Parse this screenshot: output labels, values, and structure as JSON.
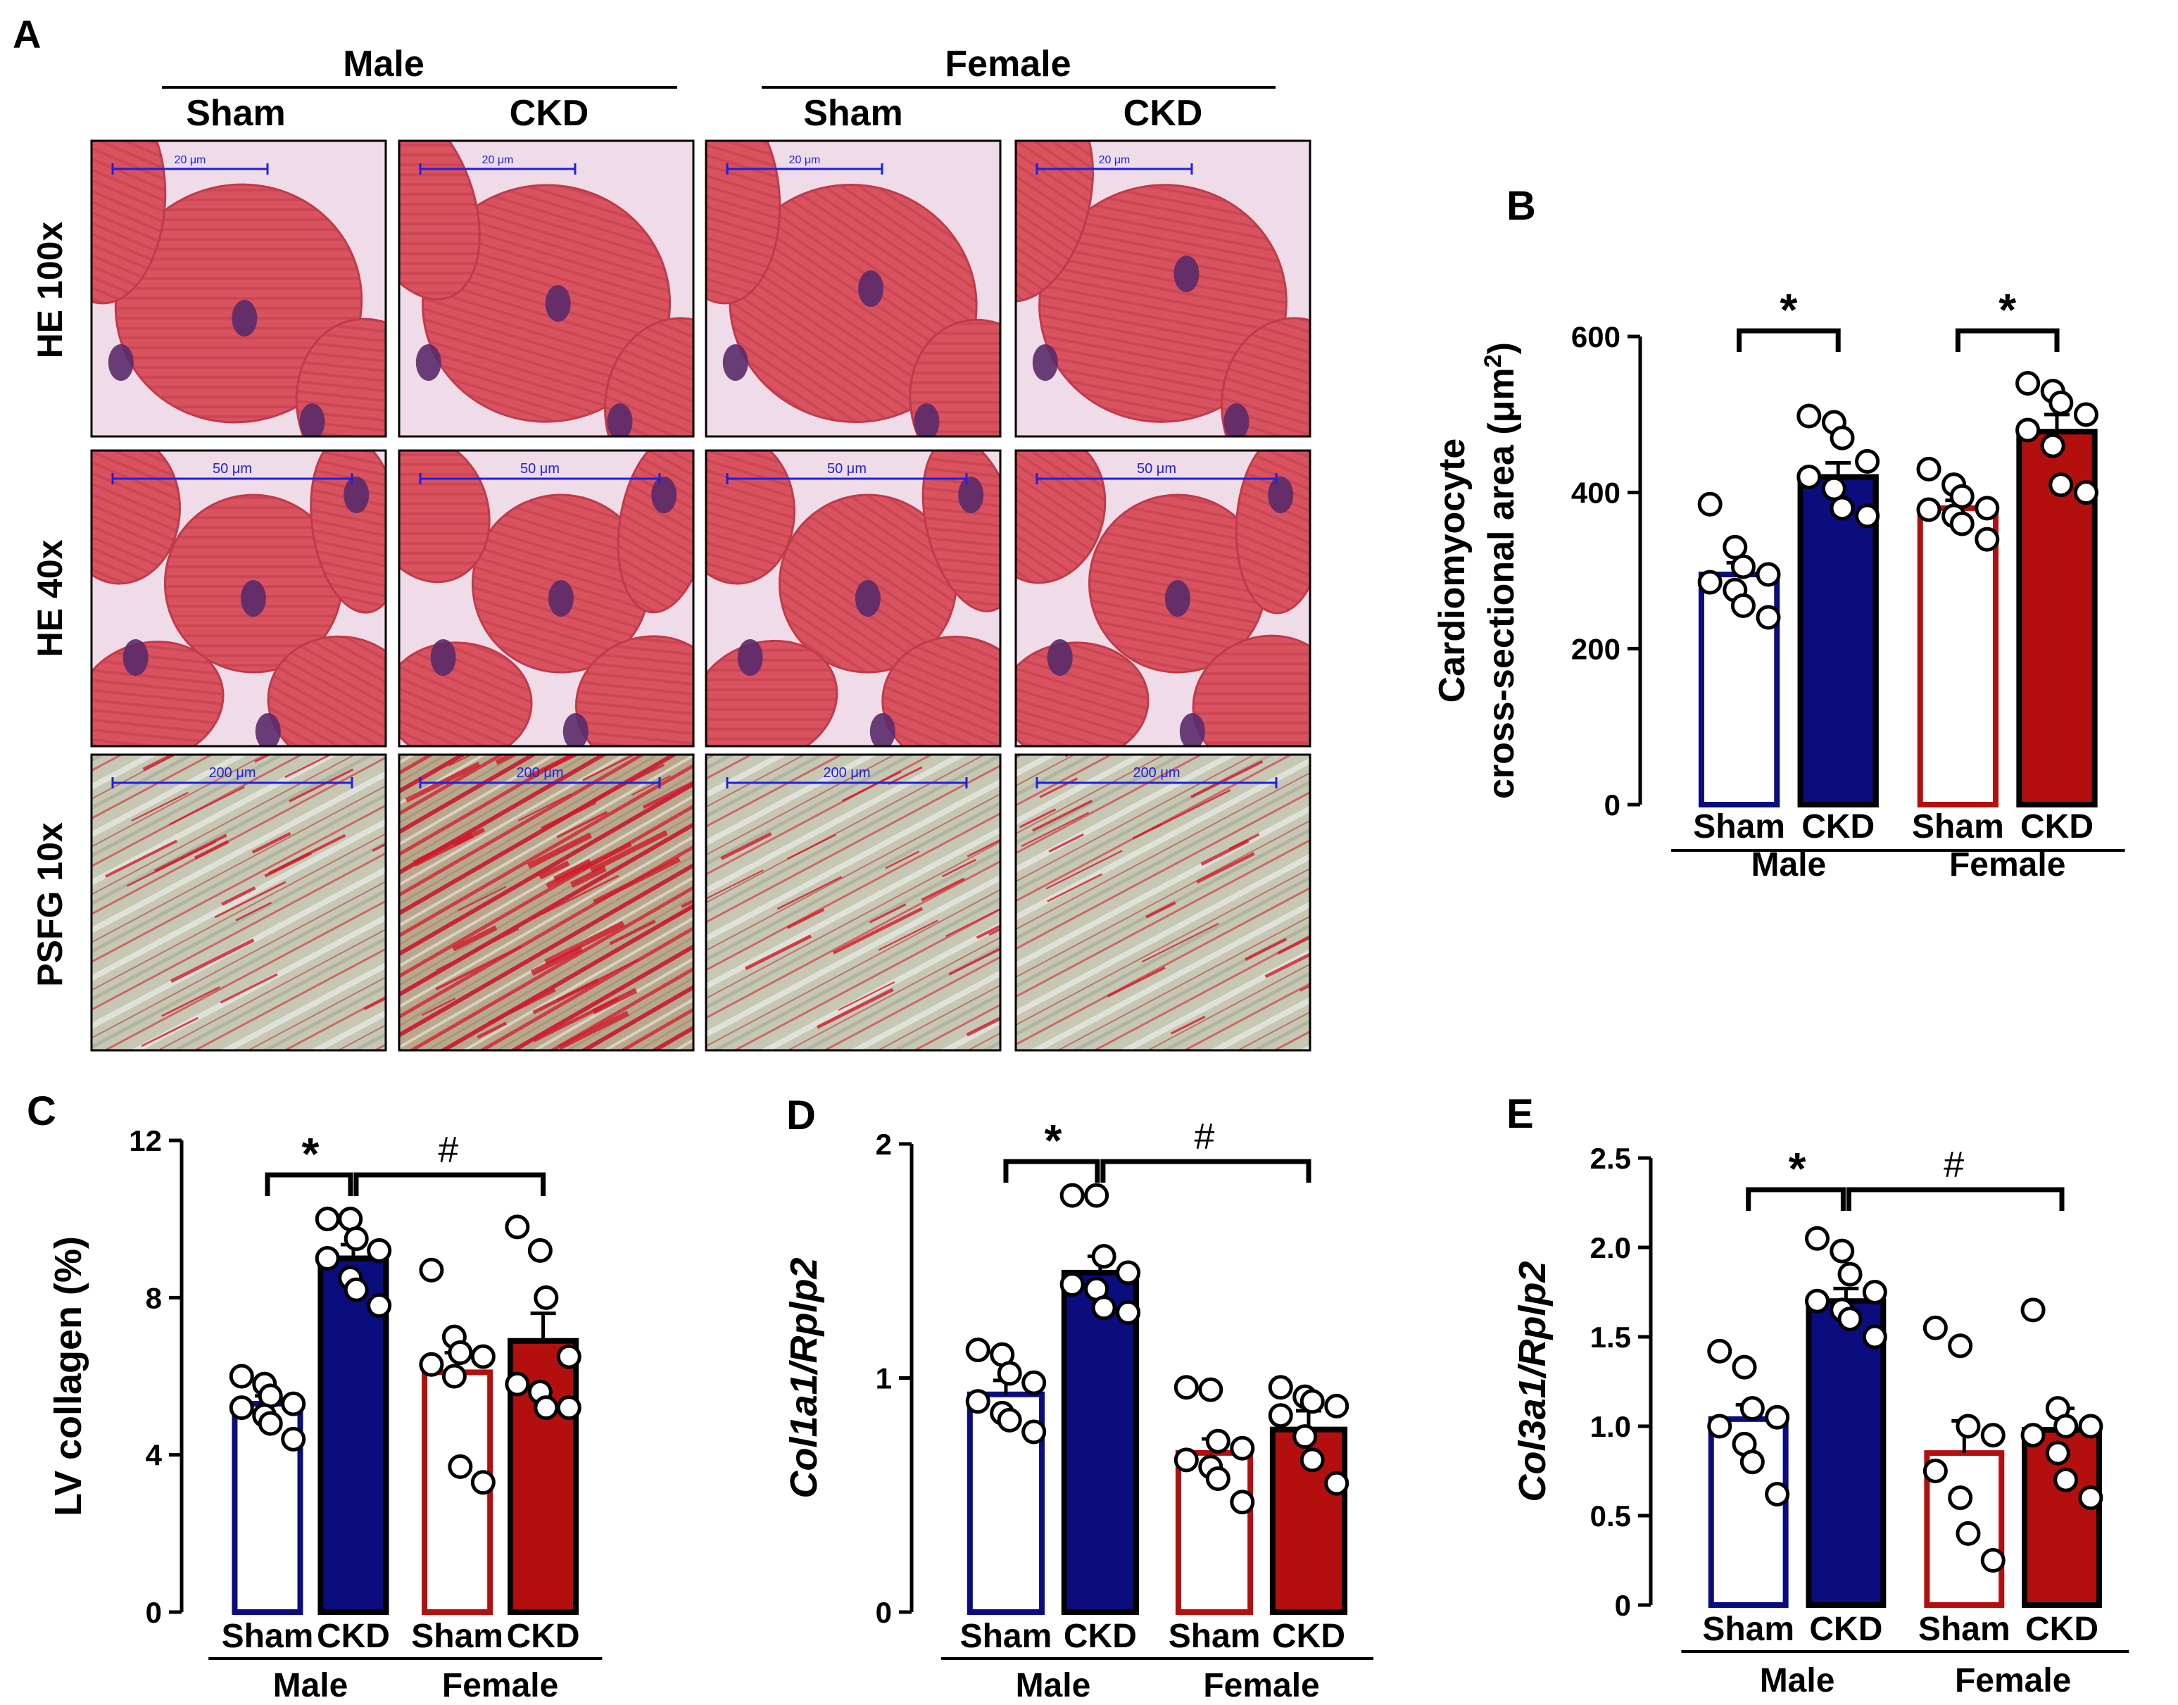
{
  "panel_a": {
    "label": "A",
    "sex_headers": [
      "Male",
      "Female"
    ],
    "group_headers": [
      "Sham",
      "CKD",
      "Sham",
      "CKD"
    ],
    "row_labels": [
      "HE 100x",
      "HE 40x",
      "PSFG 10x"
    ],
    "scale_bars": [
      "20 μm",
      "50 μm",
      "200 μm"
    ]
  },
  "colors": {
    "male": "#0b0c7d",
    "female": "#b30f0f",
    "he_tissue": "#d95764",
    "he_background": "#f0dce8",
    "nucleus": "#5a2a6a",
    "psfg_background": "#c6c8b4",
    "collagen": "#d01a2a",
    "scale_bar": "#2020e0"
  },
  "chart_data": [
    {
      "panel": "B",
      "type": "bar",
      "categories": [
        "Sham",
        "CKD",
        "Sham",
        "CKD"
      ],
      "groups": [
        "Male",
        "Female"
      ],
      "values": [
        295,
        420,
        380,
        478
      ],
      "sem": [
        15,
        18,
        10,
        22
      ],
      "points": [
        [
          385,
          330,
          305,
          295,
          285,
          275,
          255,
          240
        ],
        [
          498,
          490,
          470,
          440,
          420,
          405,
          380,
          370
        ],
        [
          430,
          410,
          395,
          380,
          378,
          370,
          360,
          340
        ],
        [
          540,
          530,
          515,
          500,
          480,
          460,
          410,
          400
        ]
      ],
      "yticks": [
        "0",
        "200",
        "400",
        "600"
      ],
      "ylim": [
        0,
        600
      ],
      "ylabel_line1": "Cardiomyocyte",
      "ylabel_line2": "cross-sectional area (μm",
      "ylabel_sup": "2",
      "ylabel_end": ")",
      "significance": [
        "*",
        "*"
      ]
    },
    {
      "panel": "C",
      "type": "bar",
      "categories": [
        "Sham",
        "CKD",
        "Sham",
        "CKD"
      ],
      "groups": [
        "Male",
        "Female"
      ],
      "values": [
        5.3,
        9.0,
        6.1,
        6.9
      ],
      "sem": [
        0.2,
        0.35,
        0.5,
        0.7
      ],
      "points": [
        [
          6.0,
          5.8,
          5.5,
          5.3,
          5.2,
          5.0,
          4.8,
          4.4
        ],
        [
          10.0,
          10.0,
          9.5,
          9.2,
          9.0,
          8.5,
          8.2,
          7.8
        ],
        [
          8.7,
          7.0,
          6.6,
          6.5,
          6.3,
          6.0,
          3.7,
          3.3
        ],
        [
          9.8,
          9.2,
          8.0,
          6.5,
          5.8,
          5.6,
          5.2,
          5.2
        ]
      ],
      "yticks": [
        "0",
        "4",
        "8",
        "12"
      ],
      "ylim": [
        0,
        12
      ],
      "ylabel_line1": "LV collagen (%)",
      "significance": [
        "*",
        "#"
      ]
    },
    {
      "panel": "D",
      "type": "bar",
      "categories": [
        "Sham",
        "CKD",
        "Sham",
        "CKD"
      ],
      "groups": [
        "Male",
        "Female"
      ],
      "values": [
        0.93,
        1.45,
        0.68,
        0.78
      ],
      "sem": [
        0.06,
        0.07,
        0.06,
        0.08
      ],
      "points": [
        [
          1.12,
          1.1,
          1.02,
          0.98,
          0.9,
          0.85,
          0.82,
          0.77
        ],
        [
          1.78,
          1.78,
          1.52,
          1.45,
          1.4,
          1.38,
          1.3,
          1.28
        ],
        [
          0.96,
          0.95,
          0.73,
          0.7,
          0.65,
          0.62,
          0.57,
          0.47
        ],
        [
          0.96,
          0.92,
          0.9,
          0.88,
          0.84,
          0.75,
          0.65,
          0.55
        ]
      ],
      "yticks": [
        "0",
        "1",
        "2"
      ],
      "ylim": [
        0,
        2
      ],
      "ylabel_line1": "Col1a1/Rplp2",
      "significance": [
        "*",
        "#"
      ]
    },
    {
      "panel": "E",
      "type": "bar",
      "categories": [
        "Sham",
        "CKD",
        "Sham",
        "CKD"
      ],
      "groups": [
        "Male",
        "Female"
      ],
      "values": [
        1.04,
        1.7,
        0.85,
        0.98
      ],
      "sem": [
        0.08,
        0.07,
        0.18,
        0.12
      ],
      "points": [
        [
          1.42,
          1.33,
          1.1,
          1.05,
          1.0,
          0.9,
          0.8,
          0.62
        ],
        [
          2.05,
          1.98,
          1.85,
          1.75,
          1.7,
          1.65,
          1.6,
          1.5
        ],
        [
          1.55,
          1.45,
          1.0,
          0.95,
          0.75,
          0.6,
          0.4,
          0.25
        ],
        [
          1.65,
          1.1,
          1.0,
          1.0,
          0.95,
          0.85,
          0.7,
          0.6
        ]
      ],
      "yticks": [
        "0",
        "0.5",
        "1.0",
        "1.5",
        "2.0",
        "2.5"
      ],
      "ylim": [
        0,
        2.5
      ],
      "ylabel_line1": "Col3a1/Rplp2",
      "significance": [
        "*",
        "#"
      ]
    }
  ]
}
